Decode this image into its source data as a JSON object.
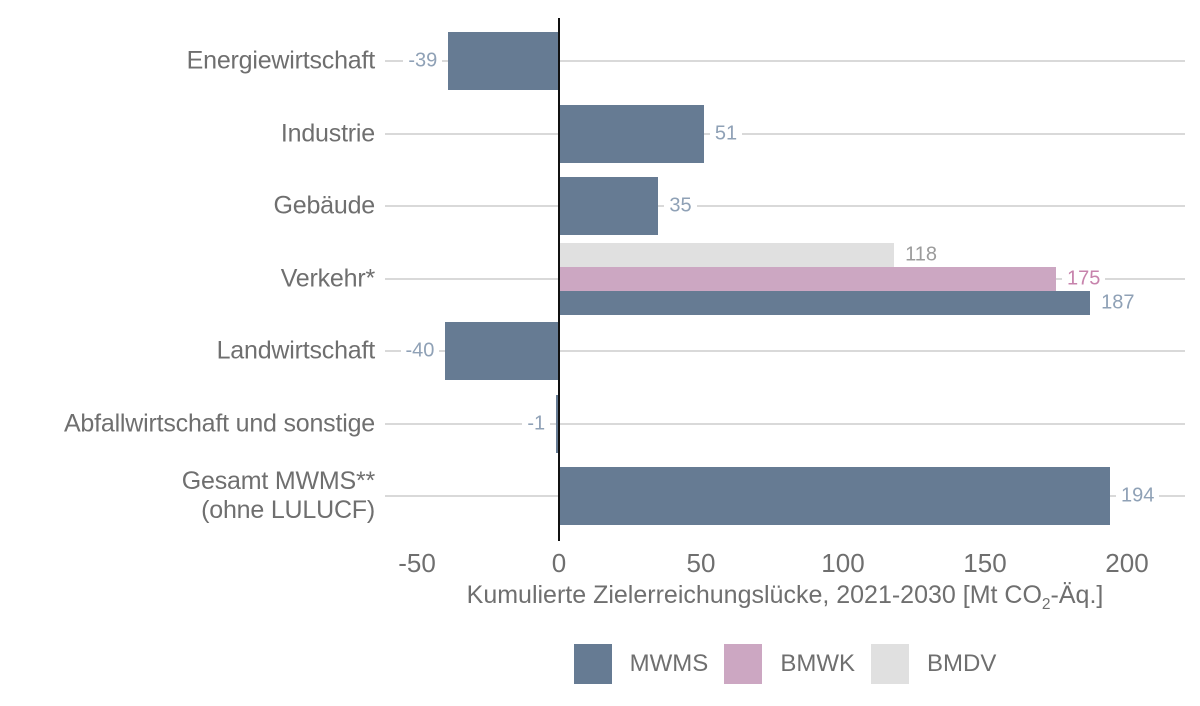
{
  "chart_data": {
    "type": "bar",
    "orientation": "horizontal",
    "title": "",
    "xlabel": {
      "pre": "Kumulierte Zielerreichungslücke, 2021-2030 [Mt CO",
      "sub": "2",
      "post": "-Äq.]"
    },
    "x_ticks": [
      -50,
      0,
      50,
      100,
      150,
      200
    ],
    "xlim": [
      -61,
      221
    ],
    "grid": "per-category horizontal leader lines",
    "legend_position": "bottom-center",
    "series": [
      {
        "name": "MWMS",
        "color": "#667B93",
        "label_color": "#8FA1B6"
      },
      {
        "name": "BMWK",
        "color": "#CCA7C2",
        "label_color": "#C783AC"
      },
      {
        "name": "BMDV",
        "color": "#E0E0E0",
        "label_color": "#9B9B9B"
      }
    ],
    "categories": [
      {
        "label_lines": [
          "Energiewirtschaft"
        ],
        "bars": [
          {
            "series": "MWMS",
            "value": -39
          }
        ]
      },
      {
        "label_lines": [
          "Industrie"
        ],
        "bars": [
          {
            "series": "MWMS",
            "value": 51
          }
        ]
      },
      {
        "label_lines": [
          "Gebäude"
        ],
        "bars": [
          {
            "series": "MWMS",
            "value": 35
          }
        ]
      },
      {
        "label_lines": [
          "Verkehr*"
        ],
        "bars": [
          {
            "series": "BMDV",
            "value": 118
          },
          {
            "series": "BMWK",
            "value": 175
          },
          {
            "series": "MWMS",
            "value": 187
          }
        ]
      },
      {
        "label_lines": [
          "Landwirtschaft"
        ],
        "bars": [
          {
            "series": "MWMS",
            "value": -40
          }
        ]
      },
      {
        "label_lines": [
          "Abfallwirtschaft und sonstige"
        ],
        "bars": [
          {
            "series": "MWMS",
            "value": -1
          }
        ]
      },
      {
        "label_lines": [
          "Gesamt MWMS**",
          "(ohne LULUCF)"
        ],
        "bars": [
          {
            "series": "MWMS",
            "value": 194
          }
        ]
      }
    ],
    "colors": {
      "gridline": "#D9D9D9",
      "zero_line": "#111111",
      "text": "#6F6F6F",
      "background": "#FFFFFF"
    }
  }
}
